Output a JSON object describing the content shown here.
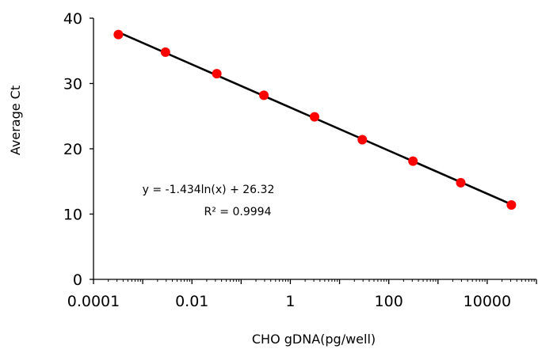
{
  "chart_data": {
    "type": "scatter",
    "x_scale": "log",
    "xlabel": "CHO gDNA(pg/well)",
    "ylabel": "Average Ct",
    "xlim": [
      0.0001,
      100000
    ],
    "ylim": [
      0,
      40
    ],
    "x_ticks": [
      0.0001,
      0.01,
      1,
      100,
      10000
    ],
    "x_tick_labels": [
      "0.0001",
      "0.01",
      "1",
      "100",
      "10000"
    ],
    "y_ticks": [
      0,
      10,
      20,
      30,
      40
    ],
    "y_tick_labels": [
      "0",
      "10",
      "20",
      "30",
      "40"
    ],
    "grid": false,
    "series": [
      {
        "x": [
          0.00032,
          0.0029,
          0.032,
          0.29,
          3.1,
          29,
          310,
          2900,
          31000
        ],
        "y": [
          37.5,
          34.8,
          31.5,
          28.2,
          24.9,
          21.4,
          18.1,
          14.8,
          11.4
        ],
        "color": "#ff0000"
      }
    ],
    "trendline": {
      "type": "logarithmic",
      "slope": -1.434,
      "intercept": 26.32,
      "color": "#000000"
    },
    "annotations": [
      "y = -1.434ln(x) + 26.32",
      "R² = 0.9994"
    ]
  }
}
